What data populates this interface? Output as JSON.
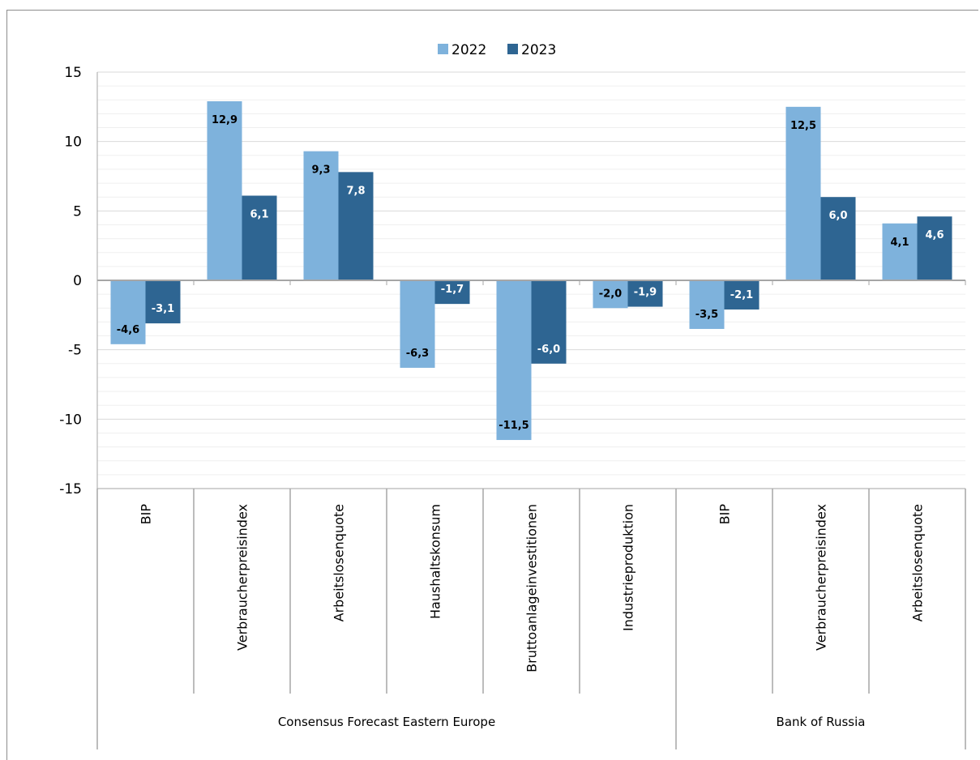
{
  "chart_data": {
    "type": "bar",
    "legend_position": "top",
    "grid": true,
    "ylim": [
      -15,
      15
    ],
    "yticks": [
      15,
      10,
      5,
      0,
      -5,
      -10,
      -15
    ],
    "ytick_labels": [
      "15",
      "10",
      "5",
      "0",
      "-5",
      "-10",
      "-15"
    ],
    "categories": [
      "BIP",
      "Verbraucherpreisindex",
      "Arbeitslosenquote",
      "Haushaltskonsum",
      "Bruttoanlageinvestitionen",
      "Industrieproduktion",
      "BIP",
      "Verbraucherpreisindex",
      "Arbeitslosenquote"
    ],
    "groups": [
      {
        "label": "Consensus Forecast Eastern Europe",
        "span": 6
      },
      {
        "label": "Bank of Russia",
        "span": 3
      }
    ],
    "series": [
      {
        "name": "2022",
        "color": "#7eb2dc",
        "values": [
          -4.6,
          12.9,
          9.3,
          -6.3,
          -11.5,
          -2.0,
          -3.5,
          12.5,
          4.1
        ],
        "labels": [
          "-4,6",
          "12,9",
          "9,3",
          "-6,3",
          "-11,5",
          "-2,0",
          "-3,5",
          "12,5",
          "4,1"
        ],
        "label_color": "#000000"
      },
      {
        "name": "2023",
        "color": "#2e6592",
        "values": [
          -3.1,
          6.1,
          7.8,
          -1.7,
          -6.0,
          -1.9,
          -2.1,
          6.0,
          4.6
        ],
        "labels": [
          "-3,1",
          "6,1",
          "7,8",
          "-1,7",
          "-6,0",
          "-1,9",
          "-2,1",
          "6,0",
          "4,6"
        ],
        "label_color": "#ffffff"
      }
    ]
  },
  "colors": {
    "axis": "#a6a6a6",
    "grid": "#d9d9d9",
    "minor_grid": "#efefef"
  }
}
